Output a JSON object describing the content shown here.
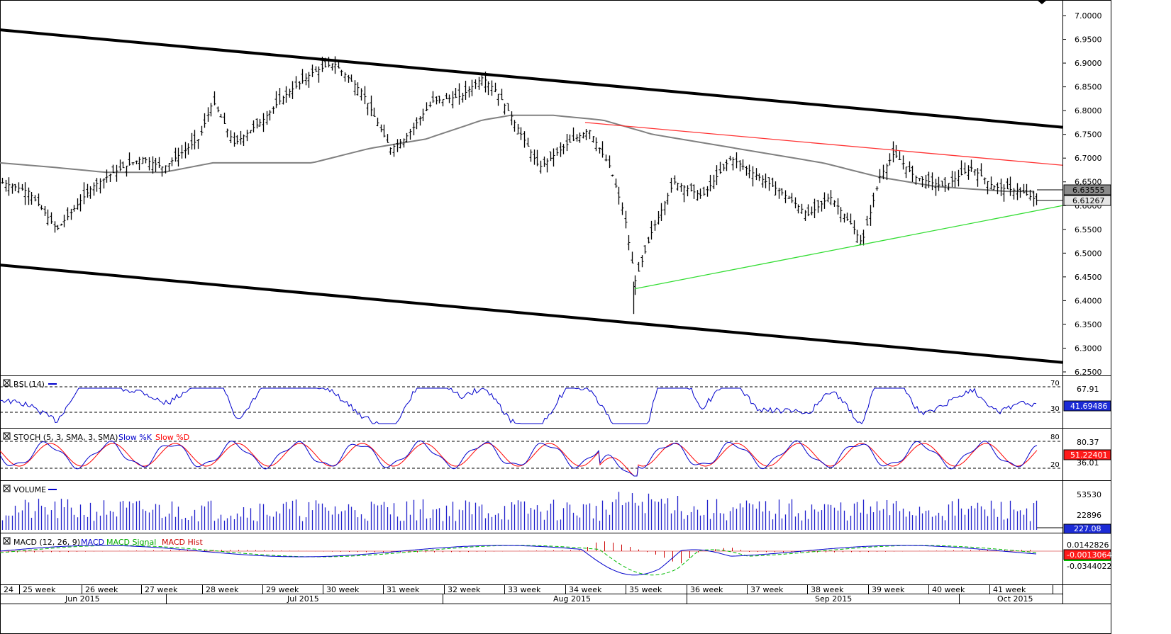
{
  "price_axis": {
    "ticks": [
      "7.0000",
      "6.9500",
      "6.9000",
      "6.8500",
      "6.8000",
      "6.7500",
      "6.7000",
      "6.6500",
      "6.6000",
      "6.5500",
      "6.5000",
      "6.4500",
      "6.4000",
      "6.3500",
      "6.3000",
      "6.2500"
    ],
    "badge_last": "6.63555",
    "badge_close": "6.61267"
  },
  "panels": {
    "rsi": {
      "label": "RSI (14)",
      "level_high": "70",
      "level_low": "30",
      "axis_label": "67.91",
      "badge": "41.69486"
    },
    "stoch": {
      "label": "STOCH (5, 3, SMA, 3, SMA)",
      "legend_k": "Slow %K",
      "legend_d": "Slow %D",
      "level_high": "80",
      "level_low": "20",
      "axis_top": "80.37",
      "axis_bottom": "36.01",
      "badge": "51.22401"
    },
    "volume": {
      "label": "VOLUME",
      "axis_top": "53530",
      "axis_mid": "22896",
      "badge": "227.08"
    },
    "macd": {
      "label": "MACD (12, 26, 9)",
      "legend_macd": "MACD",
      "legend_signal": "MACD Signal",
      "legend_hist": "MACD Hist",
      "axis_top": "0.0142826",
      "axis_bottom": "-0.0344022",
      "badge": "-0.0013064"
    }
  },
  "time_axis": {
    "weeks": [
      "24",
      "25 week",
      "26 week",
      "27 week",
      "28 week",
      "29 week",
      "30 week",
      "31 week",
      "32 week",
      "33 week",
      "34 week",
      "35 week",
      "36 week",
      "37 week",
      "38 week",
      "39 week",
      "40 week",
      "41 week"
    ],
    "months": [
      "Jun 2015",
      "Jul 2015",
      "Aug 2015",
      "Sep 2015",
      "Oct 2015"
    ]
  },
  "colors": {
    "candles": "#000000",
    "ma": "#808080",
    "channel": "#000000",
    "resistance": "#ff3333",
    "support": "#33dd33",
    "rsi": "#0000cc",
    "stoch_k": "#0000cc",
    "stoch_d": "#ff0000",
    "volume": "#2222cc",
    "macd": "#0000cc",
    "macd_signal": "#00bb00",
    "macd_hist": "#cc0000"
  },
  "chart_data": {
    "type": "candlestick",
    "ylim": [
      6.25,
      7.0
    ],
    "series": [
      {
        "name": "",
        "x": [
          0,
          40,
          80,
          130,
          160,
          200,
          230,
          280,
          300,
          330,
          370,
          400,
          440,
          470,
          510,
          550,
          570,
          610,
          650,
          680,
          700,
          720,
          760,
          800,
          830,
          860,
          880,
          895,
          920,
          950,
          990,
          1030,
          1060,
          1100,
          1140,
          1170,
          1200,
          1215,
          1240,
          1260,
          1290,
          1330,
          1370,
          1400,
          1440,
          1462
        ],
        "close": [
          6.65,
          6.63,
          6.55,
          6.64,
          6.67,
          6.7,
          6.68,
          6.74,
          6.82,
          6.73,
          6.78,
          6.83,
          6.88,
          6.9,
          6.84,
          6.72,
          6.74,
          6.82,
          6.83,
          6.87,
          6.84,
          6.79,
          6.68,
          6.73,
          6.76,
          6.68,
          6.58,
          6.44,
          6.55,
          6.65,
          6.62,
          6.7,
          6.67,
          6.63,
          6.58,
          6.62,
          6.56,
          6.52,
          6.66,
          6.71,
          6.66,
          6.64,
          6.68,
          6.64,
          6.63,
          6.61
        ]
      },
      {
        "name": "Moving average",
        "x": [
          0,
          80,
          150,
          230,
          300,
          360,
          440,
          520,
          600,
          680,
          720,
          780,
          850,
          920,
          1000,
          1080,
          1160,
          1240,
          1320,
          1420,
          1462
        ],
        "values": [
          6.69,
          6.68,
          6.67,
          6.67,
          6.69,
          6.69,
          6.69,
          6.72,
          6.74,
          6.78,
          6.79,
          6.79,
          6.78,
          6.75,
          6.73,
          6.71,
          6.69,
          6.66,
          6.64,
          6.63,
          6.63
        ]
      }
    ],
    "trendlines": [
      {
        "name": "channel-upper",
        "x": [
          0,
          1498
        ],
        "values": [
          6.97,
          6.765
        ]
      },
      {
        "name": "channel-lower",
        "x": [
          0,
          1498
        ],
        "values": [
          6.475,
          6.27
        ]
      },
      {
        "name": "resistance",
        "x": [
          825,
          1498
        ],
        "values": [
          6.775,
          6.685
        ]
      },
      {
        "name": "support",
        "x": [
          895,
          1498
        ],
        "values": [
          6.425,
          6.6
        ]
      }
    ]
  }
}
